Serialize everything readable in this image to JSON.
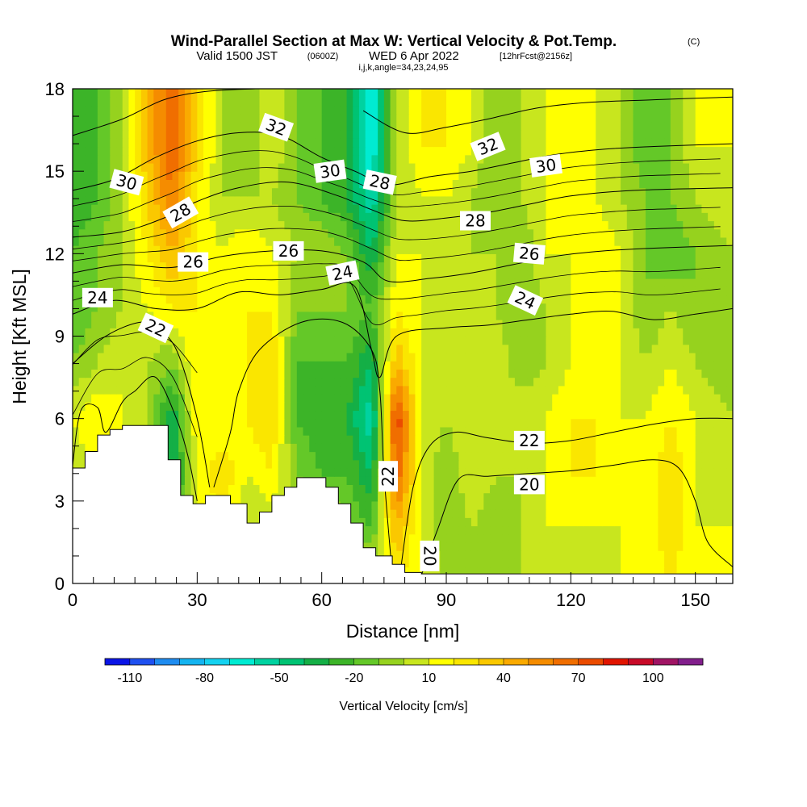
{
  "title": {
    "main": "Wind-Parallel Section at Max W: Vertical Velocity & Pot.Temp.",
    "copyright": "(C)",
    "valid_prefix": "Valid 1500 JST",
    "valid_z": "(0600Z)",
    "valid_date": "WED 6 Apr 2022",
    "fcst": "[12hrFcst@2156z]",
    "indices": "i,j,k,angle=34,23,24,95"
  },
  "chart_data": {
    "type": "heatmap",
    "xlabel": "Distance [nm]",
    "ylabel": "Height [Kft MSL]",
    "xlim": [
      0,
      159
    ],
    "ylim": [
      0,
      18
    ],
    "x_ticks": [
      0,
      30,
      60,
      90,
      120,
      150
    ],
    "y_ticks": [
      0,
      3,
      6,
      9,
      12,
      15,
      18
    ],
    "colorbar": {
      "label": "Vertical Velocity [cm/s]",
      "tick_labels": [
        -110,
        -80,
        -50,
        -20,
        10,
        40,
        70,
        100
      ],
      "bins": [
        -120,
        -110,
        -100,
        -90,
        -80,
        -70,
        -60,
        -50,
        -40,
        -30,
        -20,
        -10,
        0,
        10,
        20,
        30,
        40,
        50,
        60,
        70,
        80,
        90,
        100,
        110,
        120
      ],
      "colors": [
        "#0a14e6",
        "#1e50f0",
        "#1e8cf0",
        "#14b4f0",
        "#14d2f0",
        "#00ebd2",
        "#00d2a0",
        "#00c373",
        "#14af46",
        "#3cb428",
        "#64c828",
        "#96d21e",
        "#c8e61e",
        "#ffff00",
        "#fae600",
        "#fac800",
        "#faaa00",
        "#f58c00",
        "#f06e00",
        "#eb4b00",
        "#e11400",
        "#c80a28",
        "#a01464",
        "#821e8c"
      ]
    },
    "velocity_field": {
      "description": "vertical velocity (cm/s) sampled on a grid",
      "x": [
        0,
        6,
        12,
        18,
        24,
        30,
        36,
        42,
        48,
        54,
        60,
        66,
        72,
        78,
        84,
        90,
        96,
        102,
        108,
        114,
        120,
        126,
        132,
        138,
        144,
        150,
        159
      ],
      "y": [
        0,
        2,
        4,
        6,
        8,
        10,
        12,
        14,
        16,
        18
      ],
      "values": [
        [
          10,
          10,
          10,
          10,
          10,
          10,
          10,
          10,
          10,
          10,
          10,
          10,
          10,
          20,
          10,
          0,
          0,
          0,
          0,
          0,
          0,
          0,
          10,
          10,
          20,
          10,
          10
        ],
        [
          10,
          10,
          10,
          0,
          -30,
          10,
          20,
          0,
          0,
          0,
          10,
          -10,
          -20,
          40,
          10,
          -10,
          0,
          -10,
          0,
          10,
          10,
          10,
          10,
          10,
          30,
          10,
          10
        ],
        [
          0,
          10,
          10,
          10,
          -40,
          10,
          30,
          10,
          20,
          -10,
          -20,
          -20,
          -40,
          70,
          10,
          -10,
          10,
          0,
          0,
          10,
          20,
          20,
          10,
          10,
          30,
          10,
          0
        ],
        [
          10,
          20,
          10,
          0,
          -40,
          20,
          10,
          20,
          30,
          -20,
          -30,
          -30,
          -60,
          80,
          10,
          0,
          10,
          10,
          10,
          10,
          20,
          20,
          10,
          10,
          20,
          10,
          0
        ],
        [
          -10,
          0,
          10,
          0,
          -10,
          20,
          10,
          20,
          30,
          -20,
          -20,
          -20,
          -40,
          40,
          10,
          0,
          0,
          10,
          -10,
          0,
          10,
          20,
          10,
          0,
          10,
          0,
          -10
        ],
        [
          -20,
          -10,
          0,
          10,
          20,
          20,
          10,
          20,
          20,
          -10,
          -10,
          -10,
          -20,
          20,
          10,
          0,
          0,
          0,
          -10,
          0,
          10,
          20,
          10,
          -10,
          0,
          -10,
          -10
        ],
        [
          -20,
          -10,
          0,
          20,
          40,
          20,
          10,
          20,
          10,
          0,
          0,
          -10,
          -40,
          10,
          10,
          0,
          0,
          0,
          -10,
          10,
          10,
          20,
          10,
          -10,
          -20,
          -10,
          0
        ],
        [
          -30,
          -20,
          0,
          30,
          60,
          20,
          0,
          0,
          0,
          -10,
          -20,
          -30,
          -60,
          0,
          10,
          10,
          0,
          -10,
          0,
          10,
          10,
          10,
          0,
          -10,
          -10,
          0,
          10
        ],
        [
          -30,
          -20,
          0,
          40,
          70,
          30,
          0,
          -10,
          10,
          -10,
          -20,
          -30,
          -70,
          0,
          20,
          20,
          10,
          -10,
          0,
          10,
          20,
          10,
          0,
          -20,
          -10,
          10,
          10
        ],
        [
          -30,
          -20,
          0,
          40,
          70,
          30,
          0,
          -10,
          10,
          -10,
          -20,
          -30,
          -70,
          0,
          20,
          20,
          10,
          -10,
          0,
          10,
          20,
          10,
          0,
          -20,
          -10,
          10,
          10
        ]
      ]
    },
    "potential_temperature_contours": [
      {
        "level": 20,
        "points": [
          [
            84,
            0.3
          ],
          [
            88,
            2.0
          ],
          [
            93,
            3.8
          ],
          [
            100,
            3.9
          ],
          [
            110,
            4.0
          ],
          [
            120,
            4.1
          ],
          [
            130,
            4.3
          ],
          [
            140,
            4.5
          ],
          [
            146,
            4.2
          ],
          [
            150,
            3.0
          ],
          [
            153,
            1.5
          ],
          [
            159,
            0.6
          ]
        ]
      },
      {
        "level": 22,
        "points": [
          [
            0,
            4.3
          ],
          [
            2,
            6.3
          ],
          [
            6,
            6.4
          ],
          [
            8,
            5.5
          ],
          [
            12,
            6.6
          ],
          [
            15,
            7.0
          ],
          [
            20,
            7.5
          ],
          [
            25,
            6.0
          ],
          [
            28,
            4.5
          ],
          [
            30,
            3.0
          ]
        ]
      },
      {
        "level": 22,
        "points": [
          [
            34,
            3.5
          ],
          [
            38,
            5.5
          ],
          [
            40,
            7.0
          ],
          [
            45,
            8.5
          ],
          [
            55,
            9.5
          ],
          [
            65,
            9.5
          ],
          [
            72,
            8.5
          ],
          [
            74,
            7.0
          ],
          [
            75,
            4.0
          ],
          [
            77,
            0.3
          ]
        ]
      },
      {
        "level": 22,
        "points": [
          [
            79,
            0.5
          ],
          [
            82,
            3.5
          ],
          [
            86,
            5.0
          ],
          [
            92,
            5.5
          ],
          [
            100,
            5.3
          ],
          [
            110,
            5.1
          ],
          [
            120,
            5.2
          ],
          [
            130,
            5.5
          ],
          [
            140,
            5.8
          ],
          [
            150,
            6.0
          ],
          [
            159,
            6.0
          ]
        ]
      },
      {
        "level": 22,
        "points": [
          [
            0,
            8.0
          ],
          [
            8,
            9.0
          ],
          [
            16,
            9.5
          ],
          [
            20,
            9.3
          ],
          [
            25,
            8.5
          ],
          [
            30,
            6.0
          ],
          [
            33,
            3.5
          ]
        ]
      },
      {
        "level": 24,
        "points": [
          [
            0,
            9.8
          ],
          [
            10,
            10.3
          ],
          [
            20,
            10.0
          ],
          [
            30,
            10.0
          ],
          [
            40,
            10.6
          ],
          [
            50,
            10.5
          ],
          [
            60,
            10.7
          ],
          [
            68,
            10.8
          ],
          [
            72,
            8.5
          ],
          [
            74,
            7.5
          ],
          [
            78,
            9.0
          ],
          [
            90,
            9.3
          ],
          [
            100,
            9.4
          ],
          [
            110,
            9.6
          ],
          [
            120,
            9.8
          ],
          [
            130,
            9.9
          ],
          [
            140,
            9.6
          ],
          [
            150,
            9.8
          ],
          [
            159,
            10.0
          ]
        ]
      },
      {
        "level": 26,
        "points": [
          [
            0,
            11.3
          ],
          [
            12,
            11.6
          ],
          [
            24,
            11.5
          ],
          [
            36,
            11.9
          ],
          [
            48,
            12.1
          ],
          [
            60,
            12.1
          ],
          [
            70,
            11.7
          ],
          [
            76,
            11.0
          ],
          [
            86,
            11.1
          ],
          [
            96,
            11.3
          ],
          [
            106,
            11.6
          ],
          [
            116,
            11.9
          ],
          [
            128,
            12.1
          ],
          [
            140,
            12.2
          ],
          [
            159,
            12.3
          ]
        ]
      },
      {
        "level": 28,
        "points": [
          [
            0,
            12.6
          ],
          [
            12,
            12.8
          ],
          [
            22,
            13.3
          ],
          [
            30,
            13.9
          ],
          [
            40,
            14.4
          ],
          [
            52,
            14.6
          ],
          [
            64,
            14.1
          ],
          [
            72,
            13.6
          ],
          [
            80,
            13.2
          ],
          [
            90,
            13.3
          ],
          [
            100,
            13.5
          ],
          [
            110,
            13.8
          ],
          [
            120,
            14.1
          ],
          [
            135,
            14.3
          ],
          [
            159,
            14.4
          ]
        ]
      },
      {
        "level": 30,
        "points": [
          [
            0,
            14.3
          ],
          [
            10,
            14.7
          ],
          [
            20,
            15.5
          ],
          [
            30,
            16.1
          ],
          [
            40,
            16.4
          ],
          [
            50,
            16.3
          ],
          [
            60,
            15.5
          ],
          [
            68,
            15.0
          ],
          [
            76,
            14.5
          ],
          [
            86,
            14.8
          ],
          [
            96,
            15.0
          ],
          [
            106,
            15.3
          ],
          [
            116,
            15.6
          ],
          [
            128,
            15.8
          ],
          [
            140,
            15.9
          ],
          [
            159,
            16.0
          ]
        ]
      },
      {
        "level": 32,
        "points": [
          [
            0,
            16.3
          ],
          [
            12,
            16.9
          ],
          [
            22,
            17.6
          ],
          [
            32,
            17.9
          ],
          [
            44,
            18.0
          ]
        ]
      },
      {
        "level": 32,
        "points": [
          [
            70,
            17.2
          ],
          [
            80,
            16.4
          ],
          [
            90,
            16.6
          ],
          [
            100,
            16.9
          ],
          [
            112,
            17.3
          ],
          [
            124,
            17.5
          ],
          [
            140,
            17.6
          ],
          [
            159,
            17.7
          ]
        ]
      }
    ],
    "contour_labels": [
      {
        "text": "32",
        "x": 49,
        "y": 16.6,
        "angle": 20
      },
      {
        "text": "30",
        "x": 13,
        "y": 14.6,
        "angle": 15
      },
      {
        "text": "28",
        "x": 26,
        "y": 13.5,
        "angle": -30
      },
      {
        "text": "26",
        "x": 29,
        "y": 11.7,
        "angle": 0
      },
      {
        "text": "24",
        "x": 6,
        "y": 10.4,
        "angle": 0
      },
      {
        "text": "22",
        "x": 20,
        "y": 9.3,
        "angle": 25
      },
      {
        "text": "30",
        "x": 62,
        "y": 15.0,
        "angle": -8
      },
      {
        "text": "26",
        "x": 52,
        "y": 12.1,
        "angle": 0
      },
      {
        "text": "24",
        "x": 65,
        "y": 11.3,
        "angle": -12
      },
      {
        "text": "28",
        "x": 74,
        "y": 14.6,
        "angle": 12
      },
      {
        "text": "32",
        "x": 100,
        "y": 15.9,
        "angle": -22
      },
      {
        "text": "30",
        "x": 114,
        "y": 15.2,
        "angle": -8
      },
      {
        "text": "28",
        "x": 97,
        "y": 13.2,
        "angle": 0
      },
      {
        "text": "26",
        "x": 110,
        "y": 12.0,
        "angle": 5
      },
      {
        "text": "24",
        "x": 109,
        "y": 10.3,
        "angle": 25
      },
      {
        "text": "22",
        "x": 110,
        "y": 5.2,
        "angle": 0
      },
      {
        "text": "20",
        "x": 110,
        "y": 3.6,
        "angle": 0
      },
      {
        "text": "22",
        "x": 76,
        "y": 3.9,
        "angle": -90
      },
      {
        "text": "20",
        "x": 86,
        "y": 1.0,
        "angle": 90
      }
    ],
    "terrain": {
      "description": "terrain height (kft) along the section; blank (white) below this line",
      "points": [
        [
          0,
          4.2
        ],
        [
          3,
          4.2
        ],
        [
          3,
          4.8
        ],
        [
          6,
          4.8
        ],
        [
          6,
          5.4
        ],
        [
          9,
          5.4
        ],
        [
          9,
          5.6
        ],
        [
          12,
          5.6
        ],
        [
          12,
          5.75
        ],
        [
          23,
          5.75
        ],
        [
          23,
          4.5
        ],
        [
          26,
          4.5
        ],
        [
          26,
          3.2
        ],
        [
          29,
          3.2
        ],
        [
          29,
          2.9
        ],
        [
          32,
          2.9
        ],
        [
          32,
          3.2
        ],
        [
          38,
          3.2
        ],
        [
          38,
          2.9
        ],
        [
          42,
          2.9
        ],
        [
          42,
          2.2
        ],
        [
          45,
          2.2
        ],
        [
          45,
          2.6
        ],
        [
          48,
          2.6
        ],
        [
          48,
          3.2
        ],
        [
          51,
          3.2
        ],
        [
          51,
          3.5
        ],
        [
          54,
          3.5
        ],
        [
          54,
          3.85
        ],
        [
          61,
          3.85
        ],
        [
          61,
          3.5
        ],
        [
          64,
          3.5
        ],
        [
          64,
          2.9
        ],
        [
          67,
          2.9
        ],
        [
          67,
          2.2
        ],
        [
          70,
          2.2
        ],
        [
          70,
          1.3
        ],
        [
          73,
          1.3
        ],
        [
          73,
          1.0
        ],
        [
          77,
          1.0
        ],
        [
          77,
          0.7
        ],
        [
          80,
          0.7
        ],
        [
          80,
          0.4
        ],
        [
          84,
          0.4
        ],
        [
          84,
          0.35
        ],
        [
          159,
          0.35
        ]
      ]
    }
  }
}
